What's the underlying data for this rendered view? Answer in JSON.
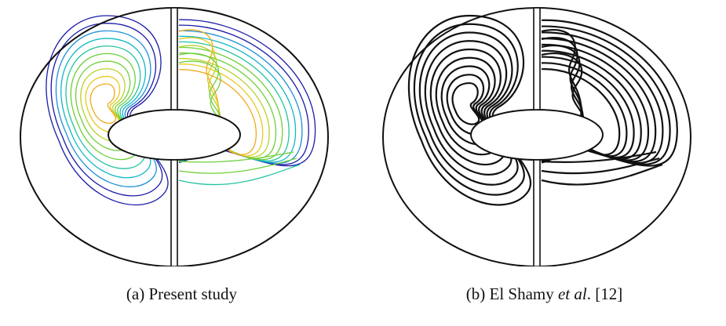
{
  "figure": {
    "panels": [
      {
        "caption": "(a) Present study",
        "palette": [
          "#1a1aa8",
          "#1e8fd6",
          "#12b6c8",
          "#22c3a0",
          "#6fcf3a",
          "#b8d22a",
          "#e8c91e",
          "#f2a81a"
        ]
      },
      {
        "caption_prefix": "(b) El Shamy ",
        "caption_italic": "et al",
        "caption_suffix": ". [12]",
        "line_color": "#111111"
      }
    ]
  }
}
